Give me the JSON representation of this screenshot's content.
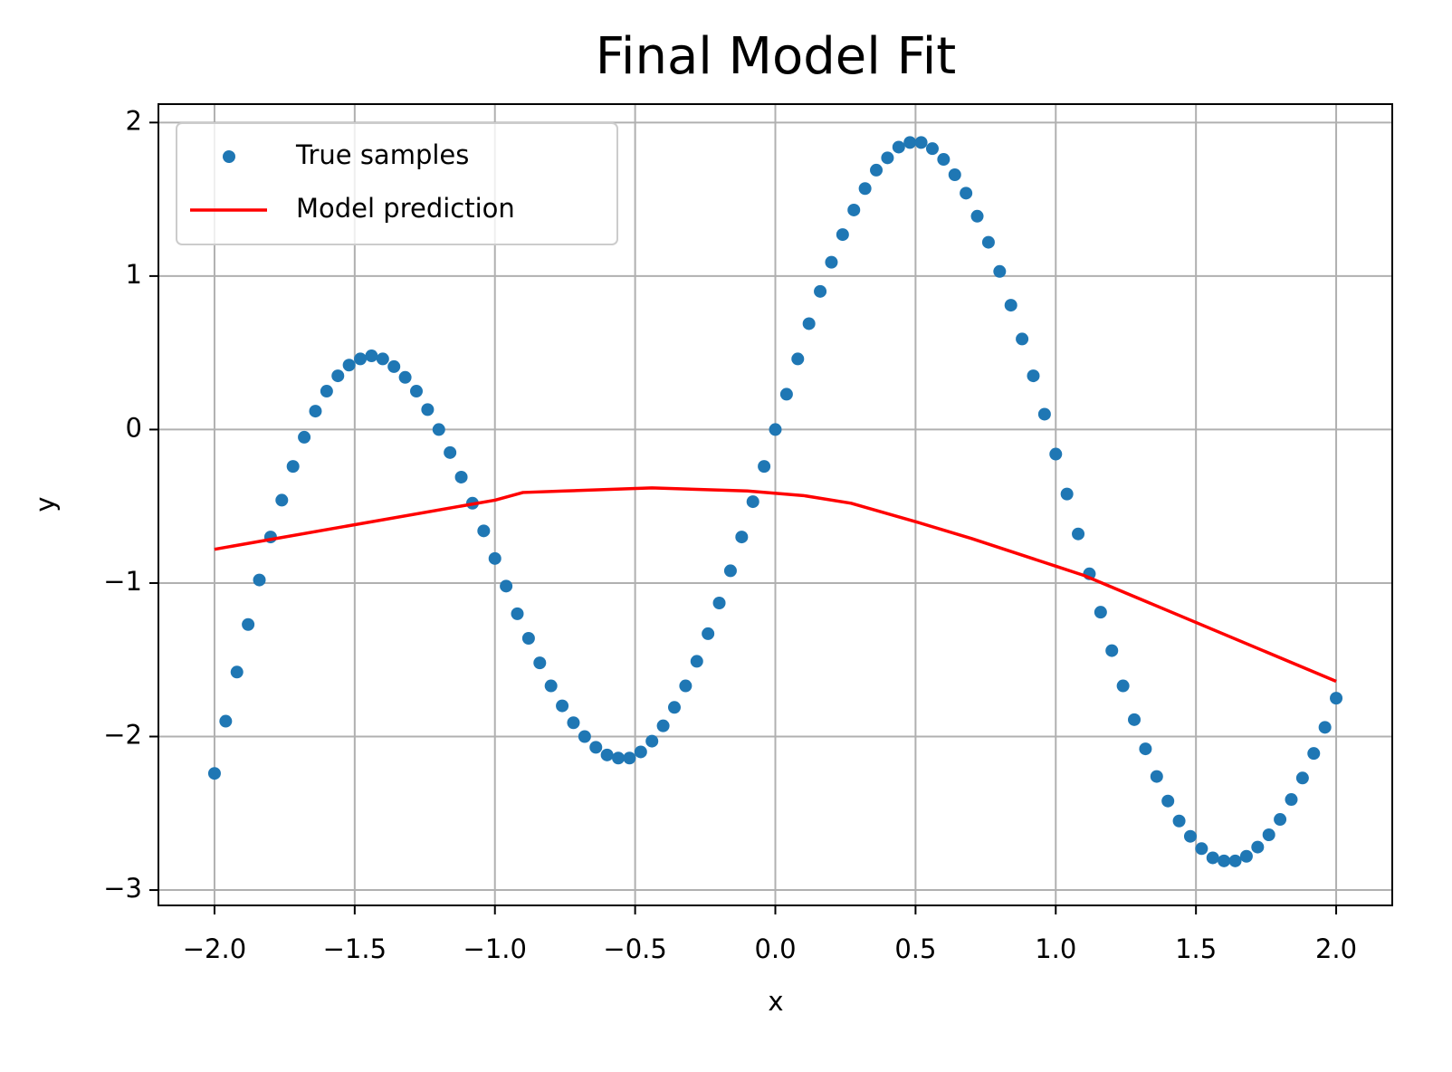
{
  "chart_data": {
    "type": "scatter",
    "title": "Final Model Fit",
    "x_label": "x",
    "y_label": "y",
    "xlim": [
      -2.2,
      2.2
    ],
    "ylim": [
      -3.1,
      2.12
    ],
    "xticks": [
      {
        "value": -2.0,
        "label": "−2.0"
      },
      {
        "value": -1.5,
        "label": "−1.5"
      },
      {
        "value": -1.0,
        "label": "−1.0"
      },
      {
        "value": -0.5,
        "label": "−0.5"
      },
      {
        "value": 0.0,
        "label": "0.0"
      },
      {
        "value": 0.5,
        "label": "0.5"
      },
      {
        "value": 1.0,
        "label": "1.0"
      },
      {
        "value": 1.5,
        "label": "1.5"
      },
      {
        "value": 2.0,
        "label": "2.0"
      }
    ],
    "yticks": [
      {
        "value": -3,
        "label": "−3"
      },
      {
        "value": -2,
        "label": "−2"
      },
      {
        "value": -1,
        "label": "−1"
      },
      0,
      1,
      2
    ],
    "grid": true,
    "legend": "upper left",
    "series": [
      {
        "name": "True samples",
        "type": "scatter",
        "color": "#1f77b4",
        "x": [
          -2.0,
          -1.96,
          -1.92,
          -1.88,
          -1.84,
          -1.8,
          -1.76,
          -1.72,
          -1.68,
          -1.64,
          -1.6,
          -1.56,
          -1.52,
          -1.48,
          -1.44,
          -1.4,
          -1.36,
          -1.32,
          -1.28,
          -1.24,
          -1.2,
          -1.16,
          -1.12,
          -1.08,
          -1.04,
          -1.0,
          -0.96,
          -0.92,
          -0.88,
          -0.84,
          -0.8,
          -0.76,
          -0.72,
          -0.68,
          -0.64,
          -0.6,
          -0.56,
          -0.52,
          -0.48,
          -0.44,
          -0.4,
          -0.36,
          -0.32,
          -0.28,
          -0.24,
          -0.2,
          -0.16,
          -0.12,
          -0.08,
          -0.04,
          0.0,
          0.04,
          0.08,
          0.12,
          0.16,
          0.2,
          0.24,
          0.28,
          0.32,
          0.36,
          0.4,
          0.44,
          0.48,
          0.52,
          0.56,
          0.6,
          0.64,
          0.68,
          0.72,
          0.76,
          0.8,
          0.84,
          0.88,
          0.92,
          0.96,
          1.0,
          1.04,
          1.08,
          1.12,
          1.16,
          1.2,
          1.24,
          1.28,
          1.32,
          1.36,
          1.4,
          1.44,
          1.48,
          1.52,
          1.56,
          1.6,
          1.64,
          1.68,
          1.72,
          1.76,
          1.8,
          1.84,
          1.88,
          1.92,
          1.96,
          2.0
        ],
        "y": [
          -2.24,
          -1.9,
          -1.58,
          -1.27,
          -0.98,
          -0.7,
          -0.46,
          -0.24,
          -0.05,
          0.12,
          0.25,
          0.35,
          0.42,
          0.46,
          0.48,
          0.46,
          0.41,
          0.34,
          0.25,
          0.13,
          0.0,
          -0.15,
          -0.31,
          -0.48,
          -0.66,
          -0.84,
          -1.02,
          -1.2,
          -1.36,
          -1.52,
          -1.67,
          -1.8,
          -1.91,
          -2.0,
          -2.07,
          -2.12,
          -2.14,
          -2.14,
          -2.1,
          -2.03,
          -1.93,
          -1.81,
          -1.67,
          -1.51,
          -1.33,
          -1.13,
          -0.92,
          -0.7,
          -0.47,
          -0.24,
          0.0,
          0.23,
          0.46,
          0.69,
          0.9,
          1.09,
          1.27,
          1.43,
          1.57,
          1.69,
          1.77,
          1.84,
          1.87,
          1.87,
          1.83,
          1.76,
          1.66,
          1.54,
          1.39,
          1.22,
          1.03,
          0.81,
          0.59,
          0.35,
          0.1,
          -0.16,
          -0.42,
          -0.68,
          -0.94,
          -1.19,
          -1.44,
          -1.67,
          -1.89,
          -2.08,
          -2.26,
          -2.42,
          -2.55,
          -2.65,
          -2.73,
          -2.79,
          -2.81,
          -2.81,
          -2.78,
          -2.72,
          -2.64,
          -2.54,
          -2.41,
          -2.27,
          -2.11,
          -1.94,
          -1.75
        ]
      },
      {
        "name": "Model prediction",
        "type": "line",
        "color": "#ff0000",
        "x": [
          -2.0,
          -1.0,
          -0.9,
          -0.75,
          -0.44,
          -0.1,
          0.1,
          0.27,
          0.5,
          0.7,
          1.0,
          1.1,
          2.0
        ],
        "y": [
          -0.78,
          -0.46,
          -0.41,
          -0.4,
          -0.38,
          -0.4,
          -0.43,
          -0.48,
          -0.6,
          -0.71,
          -0.89,
          -0.95,
          -1.64
        ]
      }
    ]
  }
}
